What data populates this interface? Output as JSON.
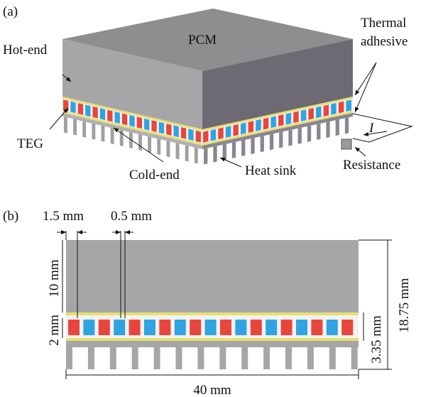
{
  "panel_a": {
    "label": "(a)",
    "pcm": "PCM",
    "hot_end": "Hot-end",
    "thermal_adhesive": [
      "Thermal",
      "adhesive"
    ],
    "teg": "TEG",
    "cold_end": "Cold-end",
    "heat_sink": "Heat sink",
    "resistance": "Resistance",
    "current": "I"
  },
  "panel_b": {
    "label": "(b)",
    "leg_width": "1.5 mm",
    "gap_width": "0.5 mm",
    "pcm_height": "10 mm",
    "teg_height": "2 mm",
    "module_height": "3.35 mm",
    "total_height": "18.75 mm",
    "total_width": "40 mm"
  }
}
